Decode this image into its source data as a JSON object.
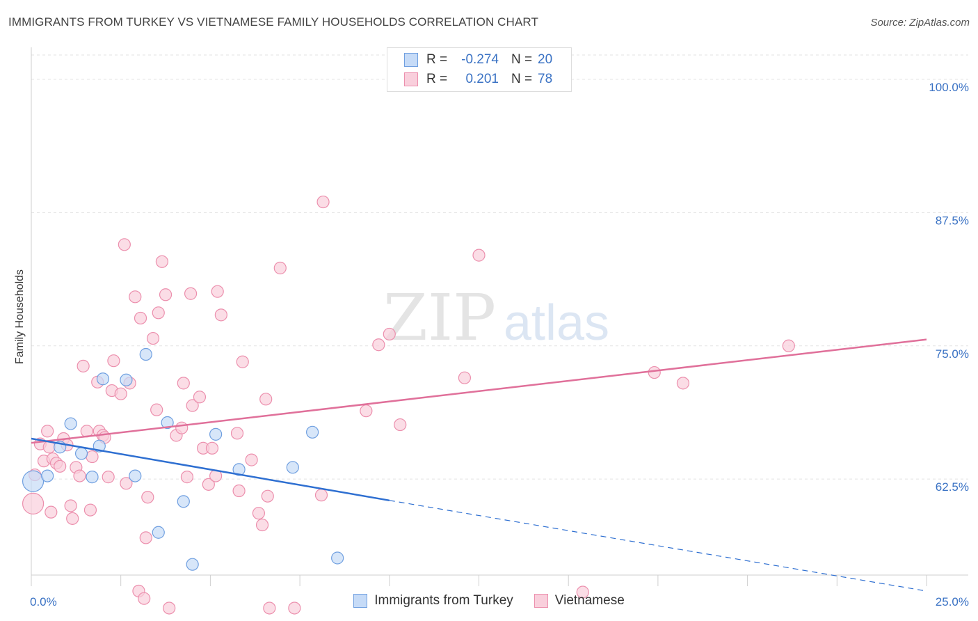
{
  "chart_data": {
    "type": "scatter",
    "title": "IMMIGRANTS FROM TURKEY VS VIETNAMESE FAMILY HOUSEHOLDS CORRELATION CHART",
    "source": "Source: ZipAtlas.com",
    "xlabel": "",
    "ylabel": "Family Households",
    "xlim": [
      0,
      25
    ],
    "ylim": [
      53.5,
      103
    ],
    "x_tick_labels": [
      "0.0%",
      "25.0%"
    ],
    "y_ticks": [
      62.5,
      75.0,
      87.5,
      100.0
    ],
    "y_tick_labels": [
      "62.5%",
      "75.0%",
      "87.5%",
      "100.0%"
    ],
    "watermark": "ZIPatlas",
    "colors": {
      "turkey": "#6f9fe0",
      "turkey_fill": "#c6dbf7",
      "turkey_line": "#2e6fd1",
      "viet": "#ec8fad",
      "viet_fill": "#f9cfdc",
      "viet_line": "#e0709a",
      "axis_text": "#3a72c4"
    },
    "legend": {
      "rows": [
        {
          "r_label": "R =",
          "r_value": "-0.274",
          "n_label": "N =",
          "n_value": "20"
        },
        {
          "r_label": "R =",
          "r_value": "0.201",
          "n_label": "N =",
          "n_value": "78"
        }
      ]
    },
    "series": [
      {
        "name": "Immigrants from Turkey",
        "trend": {
          "x0": 0,
          "y0": 66.3,
          "x1": 10,
          "y1": 60.5,
          "dash_x1": 25,
          "dash_y1": 52.0
        },
        "points": [
          {
            "x": 0.05,
            "y": 62.3,
            "big": true
          },
          {
            "x": 0.45,
            "y": 62.8
          },
          {
            "x": 0.8,
            "y": 65.5
          },
          {
            "x": 1.1,
            "y": 67.7
          },
          {
            "x": 1.4,
            "y": 64.9
          },
          {
            "x": 1.7,
            "y": 62.7
          },
          {
            "x": 1.9,
            "y": 65.6
          },
          {
            "x": 2.0,
            "y": 71.9
          },
          {
            "x": 2.65,
            "y": 71.8
          },
          {
            "x": 2.9,
            "y": 62.8
          },
          {
            "x": 3.2,
            "y": 74.2
          },
          {
            "x": 3.55,
            "y": 57.5
          },
          {
            "x": 3.8,
            "y": 67.8
          },
          {
            "x": 4.25,
            "y": 60.4
          },
          {
            "x": 4.5,
            "y": 54.5
          },
          {
            "x": 5.15,
            "y": 66.7
          },
          {
            "x": 5.8,
            "y": 63.4
          },
          {
            "x": 7.3,
            "y": 63.6
          },
          {
            "x": 7.85,
            "y": 66.9
          },
          {
            "x": 8.55,
            "y": 55.1
          }
        ]
      },
      {
        "name": "Vietnamese",
        "trend": {
          "x0": 0,
          "y0": 65.9,
          "x1": 25,
          "y1": 75.6
        },
        "points": [
          {
            "x": 0.05,
            "y": 60.2,
            "big": true
          },
          {
            "x": 0.1,
            "y": 62.9
          },
          {
            "x": 0.25,
            "y": 65.8
          },
          {
            "x": 0.35,
            "y": 64.2
          },
          {
            "x": 0.45,
            "y": 67.0
          },
          {
            "x": 0.5,
            "y": 65.5
          },
          {
            "x": 0.55,
            "y": 59.4
          },
          {
            "x": 0.6,
            "y": 64.4
          },
          {
            "x": 0.7,
            "y": 64.0
          },
          {
            "x": 0.8,
            "y": 63.7
          },
          {
            "x": 0.9,
            "y": 66.3
          },
          {
            "x": 1.0,
            "y": 65.7
          },
          {
            "x": 1.1,
            "y": 60.0
          },
          {
            "x": 1.15,
            "y": 58.8
          },
          {
            "x": 1.25,
            "y": 63.6
          },
          {
            "x": 1.35,
            "y": 62.8
          },
          {
            "x": 1.45,
            "y": 73.1
          },
          {
            "x": 1.55,
            "y": 67.0
          },
          {
            "x": 1.65,
            "y": 59.6
          },
          {
            "x": 1.7,
            "y": 64.6
          },
          {
            "x": 1.85,
            "y": 71.6
          },
          {
            "x": 1.9,
            "y": 67.0
          },
          {
            "x": 2.0,
            "y": 66.6
          },
          {
            "x": 2.05,
            "y": 66.4
          },
          {
            "x": 2.15,
            "y": 62.7
          },
          {
            "x": 2.25,
            "y": 70.8
          },
          {
            "x": 2.3,
            "y": 73.6
          },
          {
            "x": 2.5,
            "y": 70.5
          },
          {
            "x": 2.6,
            "y": 84.5
          },
          {
            "x": 2.65,
            "y": 62.1
          },
          {
            "x": 2.75,
            "y": 71.5
          },
          {
            "x": 2.9,
            "y": 79.6
          },
          {
            "x": 3.0,
            "y": 52.0
          },
          {
            "x": 3.05,
            "y": 77.6
          },
          {
            "x": 3.15,
            "y": 51.3
          },
          {
            "x": 3.2,
            "y": 57.0
          },
          {
            "x": 3.25,
            "y": 60.8
          },
          {
            "x": 3.4,
            "y": 75.7
          },
          {
            "x": 3.5,
            "y": 69.0
          },
          {
            "x": 3.55,
            "y": 78.1
          },
          {
            "x": 3.65,
            "y": 82.9
          },
          {
            "x": 3.75,
            "y": 79.8
          },
          {
            "x": 3.85,
            "y": 50.4
          },
          {
            "x": 4.05,
            "y": 66.6
          },
          {
            "x": 4.2,
            "y": 67.3
          },
          {
            "x": 4.25,
            "y": 71.5
          },
          {
            "x": 4.35,
            "y": 62.7
          },
          {
            "x": 4.45,
            "y": 79.9
          },
          {
            "x": 4.5,
            "y": 69.4
          },
          {
            "x": 4.7,
            "y": 70.2
          },
          {
            "x": 4.8,
            "y": 65.4
          },
          {
            "x": 4.95,
            "y": 62.0
          },
          {
            "x": 5.05,
            "y": 65.4
          },
          {
            "x": 5.15,
            "y": 62.8
          },
          {
            "x": 5.2,
            "y": 80.1
          },
          {
            "x": 5.3,
            "y": 77.9
          },
          {
            "x": 5.75,
            "y": 66.8
          },
          {
            "x": 5.8,
            "y": 61.4
          },
          {
            "x": 5.9,
            "y": 73.5
          },
          {
            "x": 6.15,
            "y": 64.3
          },
          {
            "x": 6.35,
            "y": 59.3
          },
          {
            "x": 6.45,
            "y": 58.2
          },
          {
            "x": 6.55,
            "y": 70.0
          },
          {
            "x": 6.6,
            "y": 60.9
          },
          {
            "x": 6.65,
            "y": 50.4
          },
          {
            "x": 6.95,
            "y": 82.3
          },
          {
            "x": 7.35,
            "y": 50.4
          },
          {
            "x": 8.1,
            "y": 61.0
          },
          {
            "x": 8.15,
            "y": 88.5
          },
          {
            "x": 9.35,
            "y": 68.9
          },
          {
            "x": 9.7,
            "y": 75.1
          },
          {
            "x": 10.0,
            "y": 76.1
          },
          {
            "x": 10.3,
            "y": 67.6
          },
          {
            "x": 12.1,
            "y": 72.0
          },
          {
            "x": 12.5,
            "y": 83.5
          },
          {
            "x": 15.4,
            "y": 51.9
          },
          {
            "x": 17.4,
            "y": 72.5
          },
          {
            "x": 18.2,
            "y": 71.5
          },
          {
            "x": 21.15,
            "y": 75.0
          }
        ]
      }
    ]
  }
}
